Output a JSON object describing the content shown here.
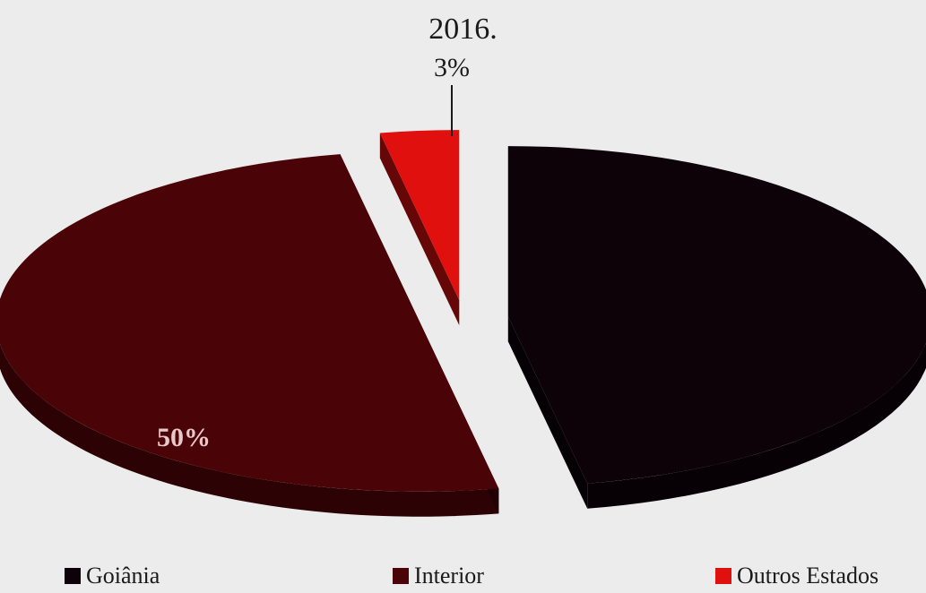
{
  "chart_data": {
    "type": "pie",
    "title": "2016.",
    "categories": [
      "Goiânia",
      "Interior",
      "Outros Estados"
    ],
    "values": [
      47,
      50,
      3
    ],
    "data_labels": [
      "",
      "50%",
      "3%"
    ],
    "colors": [
      "#0c0208",
      "#4a0306",
      "#e0100f"
    ],
    "legend_placement": "bottom",
    "style": "3d-exploded"
  }
}
